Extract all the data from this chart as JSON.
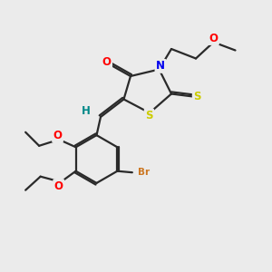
{
  "bg_color": "#ebebeb",
  "bond_color": "#2a2a2a",
  "bond_width": 1.6,
  "atom_colors": {
    "O": "#ff0000",
    "N": "#0000ee",
    "S": "#cccc00",
    "Br": "#cc7722",
    "H": "#008888"
  },
  "font_size": 8.5,
  "fig_size": [
    3.0,
    3.0
  ],
  "dpi": 100
}
